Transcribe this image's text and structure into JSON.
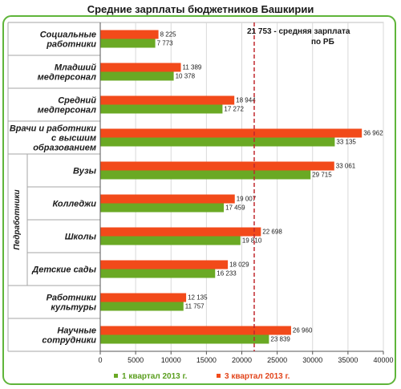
{
  "chart_data": {
    "type": "bar",
    "orientation": "horizontal",
    "title": "Средние зарплаты бюджетников Башкирии",
    "categories": [
      [
        "Социальные",
        "работники"
      ],
      [
        "Младший",
        "медперсонал"
      ],
      [
        "Средний",
        "медперсонал"
      ],
      [
        "Врачи и работники",
        "с высшим",
        "образованием"
      ],
      [
        "Вузы"
      ],
      [
        "Колледжи"
      ],
      [
        "Школы"
      ],
      [
        "Детские сады"
      ],
      [
        "Работники",
        "культуры"
      ],
      [
        "Научные",
        "сотрудники"
      ]
    ],
    "series": [
      {
        "name": "3 квартал 2013 г.",
        "color": "#f24a1a",
        "values": [
          8225,
          11389,
          18944,
          36962,
          33061,
          19007,
          22698,
          18029,
          12135,
          26960
        ],
        "labels": [
          "8 225",
          "11 389",
          "18 944",
          "36 962",
          "33 061",
          "19 007",
          "22 698",
          "18 029",
          "12 135",
          "26 960"
        ]
      },
      {
        "name": "1 квартал 2013 г.",
        "color": "#6aa924",
        "values": [
          7773,
          10378,
          17272,
          33135,
          29715,
          17459,
          19810,
          16233,
          11757,
          23839
        ],
        "labels": [
          "7 773",
          "10 378",
          "17 272",
          "33 135",
          "29 715",
          "17 459",
          "19 810",
          "16 233",
          "11 757",
          "23 839"
        ]
      }
    ],
    "xlim": [
      0,
      40000
    ],
    "xticks": [
      "0",
      "5000",
      "10000",
      "15000",
      "20000",
      "25000",
      "30000",
      "35000",
      "40000"
    ],
    "group_label": "Педработники",
    "group_range": [
      4,
      7
    ],
    "reference_line": {
      "value": 21753,
      "label_lines": [
        "21 753  -  средняя зарплата",
        "по РБ"
      ],
      "color": "#c0272d"
    },
    "legend": {
      "position": "bottom",
      "items": [
        "1 квартал 2013 г.",
        "3 квартал 2013 г."
      ]
    }
  }
}
